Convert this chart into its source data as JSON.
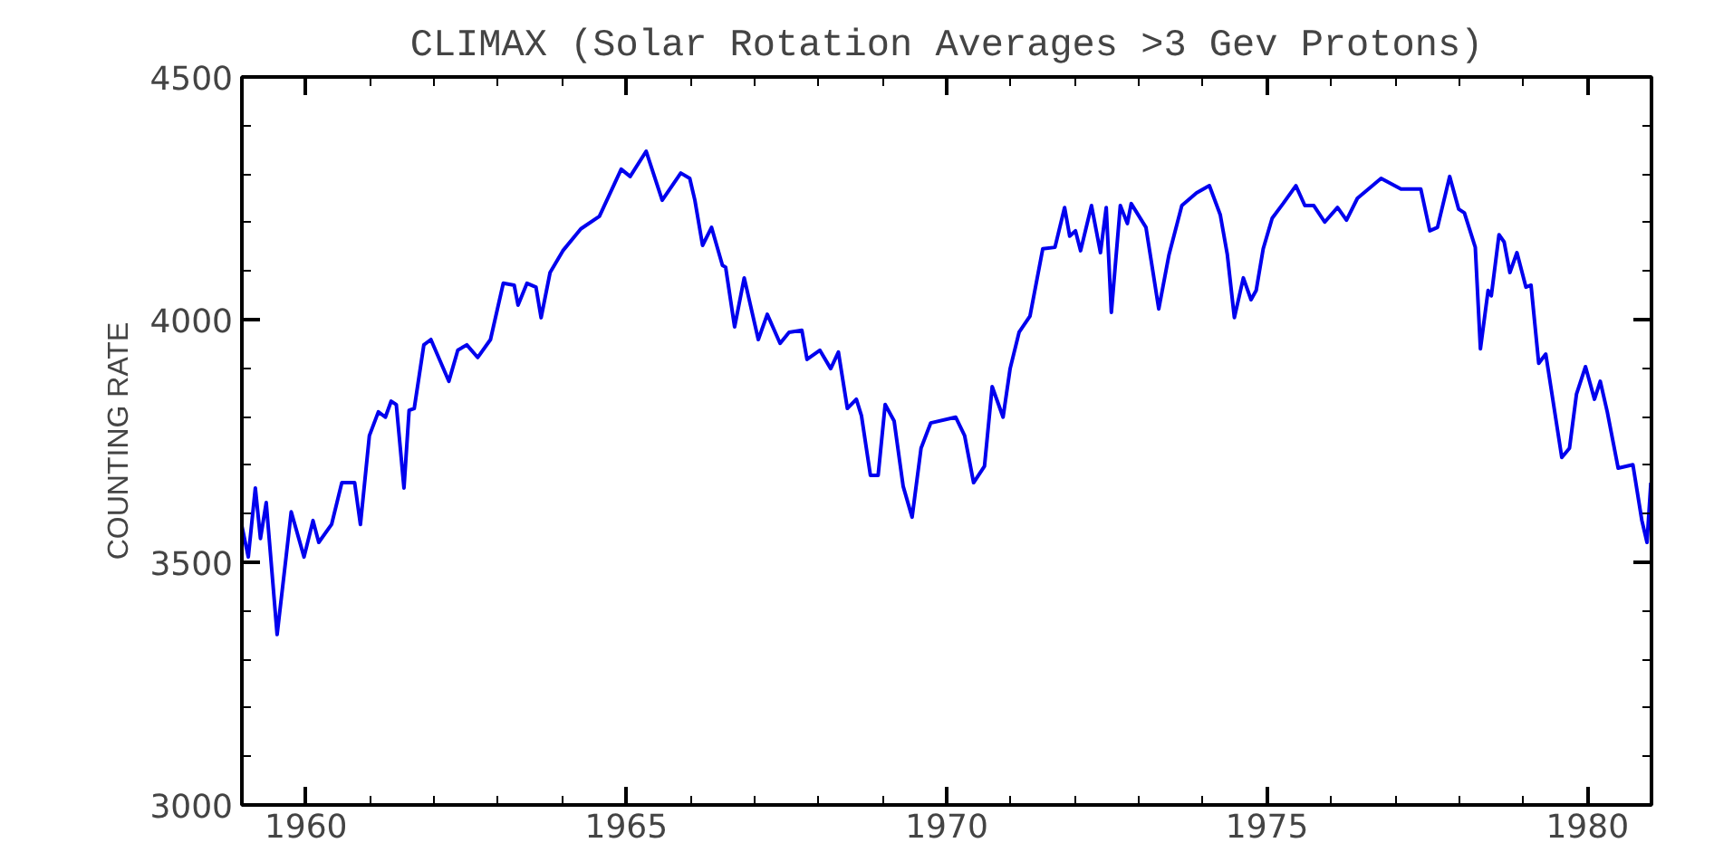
{
  "chart_data": {
    "type": "line",
    "title": "CLIMAX (Solar Rotation Averages >3 Gev Protons)",
    "ylabel": "COUNTING RATE",
    "xlim": [
      1959,
      1981
    ],
    "ylim": [
      3000,
      4500
    ],
    "xticks": [
      {
        "value": 1959,
        "label": null
      },
      1960,
      {
        "value": 1961,
        "label": null
      },
      {
        "value": 1962,
        "label": null
      },
      {
        "value": 1963,
        "label": null
      },
      {
        "value": 1964,
        "label": null
      },
      1965,
      {
        "value": 1966,
        "label": null
      },
      {
        "value": 1967,
        "label": null
      },
      {
        "value": 1968,
        "label": null
      },
      {
        "value": 1969,
        "label": null
      },
      1970,
      {
        "value": 1971,
        "label": null
      },
      {
        "value": 1972,
        "label": null
      },
      {
        "value": 1973,
        "label": null
      },
      {
        "value": 1974,
        "label": null
      },
      1975,
      {
        "value": 1976,
        "label": null
      },
      {
        "value": 1977,
        "label": null
      },
      {
        "value": 1978,
        "label": null
      },
      {
        "value": 1979,
        "label": null
      },
      1980,
      {
        "value": 1981,
        "label": null
      }
    ],
    "yticks": [
      3000,
      {
        "value": 3100,
        "label": null
      },
      {
        "value": 3200,
        "label": null
      },
      {
        "value": 3300,
        "label": null
      },
      {
        "value": 3400,
        "label": null
      },
      3500,
      {
        "value": 3600,
        "label": null
      },
      {
        "value": 3700,
        "label": null
      },
      {
        "value": 3800,
        "label": null
      },
      {
        "value": 3900,
        "label": null
      },
      4000,
      {
        "value": 4100,
        "label": null
      },
      {
        "value": 4200,
        "label": null
      },
      {
        "value": 4300,
        "label": null
      },
      {
        "value": 4400,
        "label": null
      },
      4500
    ],
    "line_style": "solid",
    "series": [
      {
        "color": "#0000ee",
        "x": [
          1959.0,
          1959.1,
          1959.21,
          1959.29,
          1959.38,
          1959.55,
          1959.69,
          1959.77,
          1959.97,
          1960.11,
          1960.2,
          1960.4,
          1960.56,
          1960.76,
          1960.85,
          1960.99,
          1961.13,
          1961.24,
          1961.33,
          1961.41,
          1961.53,
          1961.61,
          1961.69,
          1961.84,
          1961.95,
          1962.23,
          1962.37,
          1962.51,
          1962.68,
          1962.88,
          1963.08,
          1963.25,
          1963.31,
          1963.45,
          1963.59,
          1963.67,
          1963.81,
          1964.01,
          1964.29,
          1964.58,
          1964.92,
          1965.06,
          1965.31,
          1965.56,
          1965.85,
          1965.99,
          1966.07,
          1966.19,
          1966.33,
          1966.5,
          1966.55,
          1966.69,
          1966.84,
          1967.06,
          1967.2,
          1967.4,
          1967.54,
          1967.74,
          1967.82,
          1968.02,
          1968.19,
          1968.31,
          1968.45,
          1968.59,
          1968.67,
          1968.81,
          1968.93,
          1969.04,
          1969.18,
          1969.32,
          1969.46,
          1969.6,
          1969.75,
          1970.14,
          1970.28,
          1970.42,
          1970.59,
          1970.71,
          1970.88,
          1970.99,
          1971.13,
          1971.3,
          1971.5,
          1971.69,
          1971.84,
          1971.92,
          1972.01,
          1972.09,
          1972.26,
          1972.4,
          1972.49,
          1972.57,
          1972.71,
          1972.82,
          1972.88,
          1973.11,
          1973.31,
          1973.47,
          1973.67,
          1973.9,
          1974.1,
          1974.27,
          1974.38,
          1974.49,
          1974.63,
          1974.75,
          1974.83,
          1974.94,
          1975.08,
          1975.25,
          1975.45,
          1975.59,
          1975.73,
          1975.9,
          1976.1,
          1976.24,
          1976.41,
          1976.78,
          1977.09,
          1977.4,
          1977.54,
          1977.66,
          1977.85,
          1977.99,
          1978.08,
          1978.25,
          1978.33,
          1978.45,
          1978.5,
          1978.62,
          1978.7,
          1978.79,
          1978.9,
          1979.04,
          1979.12,
          1979.24,
          1979.35,
          1979.6,
          1979.72,
          1979.83,
          1979.97,
          1980.11,
          1980.2,
          1980.31,
          1980.48,
          1980.71,
          1980.85,
          1980.93,
          1980.99
        ],
        "values": [
          3575,
          3511,
          3653,
          3549,
          3623,
          3351,
          3511,
          3604,
          3511,
          3586,
          3541,
          3578,
          3664,
          3664,
          3578,
          3761,
          3810,
          3799,
          3832,
          3825,
          3653,
          3813,
          3817,
          3948,
          3959,
          3873,
          3937,
          3948,
          3922,
          3959,
          4075,
          4071,
          4030,
          4075,
          4067,
          4004,
          4097,
          4142,
          4187,
          4213,
          4310,
          4295,
          4347,
          4246,
          4302,
          4291,
          4246,
          4153,
          4190,
          4112,
          4108,
          3985,
          4086,
          3959,
          4011,
          3951,
          3974,
          3978,
          3918,
          3937,
          3899,
          3933,
          3817,
          3836,
          3802,
          3679,
          3679,
          3825,
          3791,
          3657,
          3593,
          3735,
          3787,
          3799,
          3761,
          3664,
          3698,
          3862,
          3799,
          3899,
          3974,
          4007,
          4146,
          4149,
          4231,
          4172,
          4183,
          4142,
          4235,
          4138,
          4231,
          4015,
          4235,
          4198,
          4239,
          4190,
          4022,
          4134,
          4235,
          4261,
          4276,
          4216,
          4134,
          4004,
          4086,
          4041,
          4060,
          4146,
          4209,
          4239,
          4276,
          4235,
          4235,
          4201,
          4231,
          4205,
          4250,
          4291,
          4269,
          4269,
          4183,
          4190,
          4295,
          4228,
          4220,
          4149,
          3940,
          4060,
          4049,
          4175,
          4160,
          4097,
          4138,
          4067,
          4071,
          3910,
          3929,
          3716,
          3735,
          3847,
          3903,
          3836,
          3873,
          3810,
          3694,
          3701,
          3586,
          3541,
          3664
        ]
      }
    ]
  }
}
